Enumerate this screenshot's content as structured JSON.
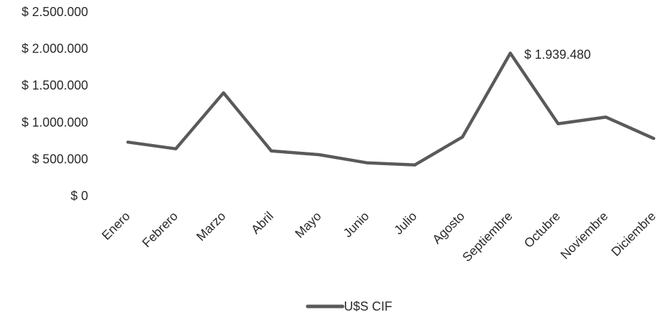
{
  "chart_data": {
    "type": "line",
    "categories": [
      "Enero",
      "Febrero",
      "Marzo",
      "Abril",
      "Mayo",
      "Junio",
      "Julio",
      "Agosto",
      "Septiembre",
      "Octubre",
      "Noviembre",
      "Diciembre"
    ],
    "series": [
      {
        "name": "U$S CIF",
        "values": [
          730000,
          640000,
          1400000,
          610000,
          560000,
          450000,
          420000,
          800000,
          1939480,
          980000,
          1070000,
          780000
        ],
        "color": "#5a5a5a"
      }
    ],
    "ylim": [
      0,
      2500000
    ],
    "yticks": [
      0,
      500000,
      1000000,
      1500000,
      2000000,
      2500000
    ],
    "ytick_labels": [
      "$ 0",
      "$ 500.000",
      "$ 1.000.000",
      "$ 1.500.000",
      "$ 2.000.000",
      "$ 2.500.000"
    ],
    "annotations": [
      {
        "category": "Septiembre",
        "text": "$ 1.939.480"
      }
    ],
    "grid": false,
    "legend_position": "bottom"
  }
}
